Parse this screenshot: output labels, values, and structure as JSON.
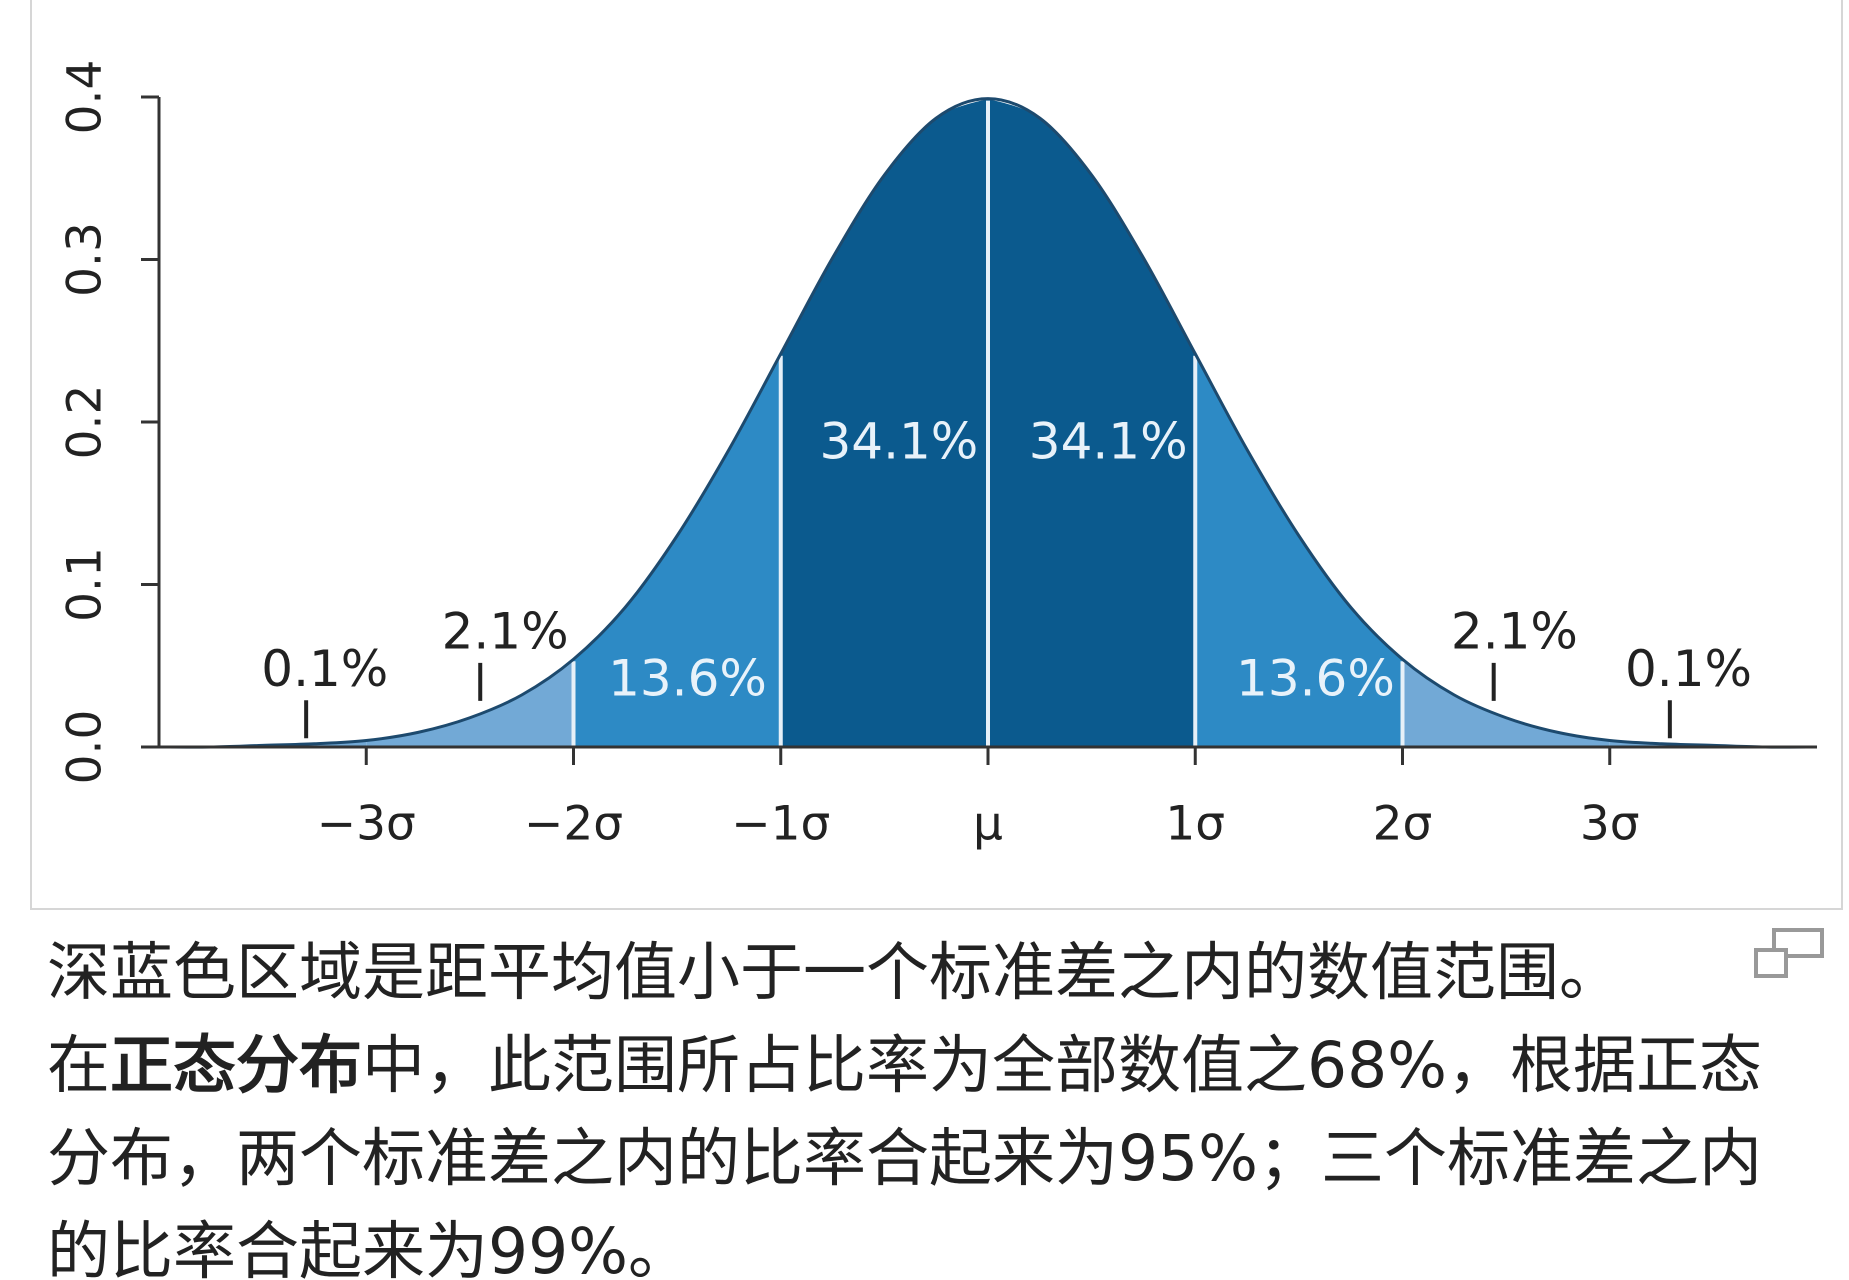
{
  "chart_data": {
    "type": "area",
    "xlim": [
      -4,
      4
    ],
    "ylim": [
      0,
      0.4
    ],
    "xticks": [
      {
        "value": -3,
        "label": "−3σ"
      },
      {
        "value": -2,
        "label": "−2σ"
      },
      {
        "value": -1,
        "label": "−1σ"
      },
      {
        "value": 0,
        "label": "μ"
      },
      {
        "value": 1,
        "label": "1σ"
      },
      {
        "value": 2,
        "label": "2σ"
      },
      {
        "value": 3,
        "label": "3σ"
      }
    ],
    "yticks": [
      {
        "value": 0,
        "label": "0.0"
      },
      0.1,
      0.2,
      0.3,
      0.4
    ],
    "x": [
      -4,
      -3.75,
      -3.5,
      -3.25,
      -3,
      -2.75,
      -2.5,
      -2.25,
      -2,
      -1.75,
      -1.5,
      -1.25,
      -1,
      -0.75,
      -0.5,
      -0.25,
      0,
      0.25,
      0.5,
      0.75,
      1,
      1.25,
      1.5,
      1.75,
      2,
      2.25,
      2.5,
      2.75,
      3,
      3.25,
      3.5,
      3.75,
      4
    ],
    "values": [
      0,
      0,
      0.001,
      0.002,
      0.004,
      0.009,
      0.018,
      0.032,
      0.054,
      0.086,
      0.13,
      0.183,
      0.242,
      0.301,
      0.352,
      0.387,
      0.399,
      0.387,
      0.352,
      0.301,
      0.242,
      0.183,
      0.13,
      0.086,
      0.054,
      0.032,
      0.018,
      0.009,
      0.004,
      0.002,
      0.001,
      0,
      0
    ],
    "color": "#1d4a6e",
    "regions": {
      "bounds": [
        -4,
        -3,
        -2,
        -1,
        0,
        1,
        2,
        3,
        4
      ],
      "values": [
        0.1,
        2.1,
        13.6,
        34.1,
        34.1,
        13.6,
        2.1,
        0.1
      ],
      "value_labels": [
        "0.1%",
        "2.1%",
        "13.6%",
        "34.1%",
        "34.1%",
        "13.6%",
        "2.1%",
        "0.1%"
      ],
      "colors": [
        "#72a9d6",
        "#72a9d6",
        "#2d8ac5",
        "#0b5a8e",
        "#0b5a8e",
        "#2d8ac5",
        "#72a9d6",
        "#72a9d6"
      ]
    }
  },
  "caption": {
    "text": "深蓝色区域是距平均值小于一个标准差之内的数值范围。",
    "segments": [
      "在",
      "正态分布",
      "中，此范围所占比率为全部数值之68%，根据正态分布，两个标准差之内的比率合起来为95%；三个标准差之内的比率合起来为99%。"
    ]
  }
}
